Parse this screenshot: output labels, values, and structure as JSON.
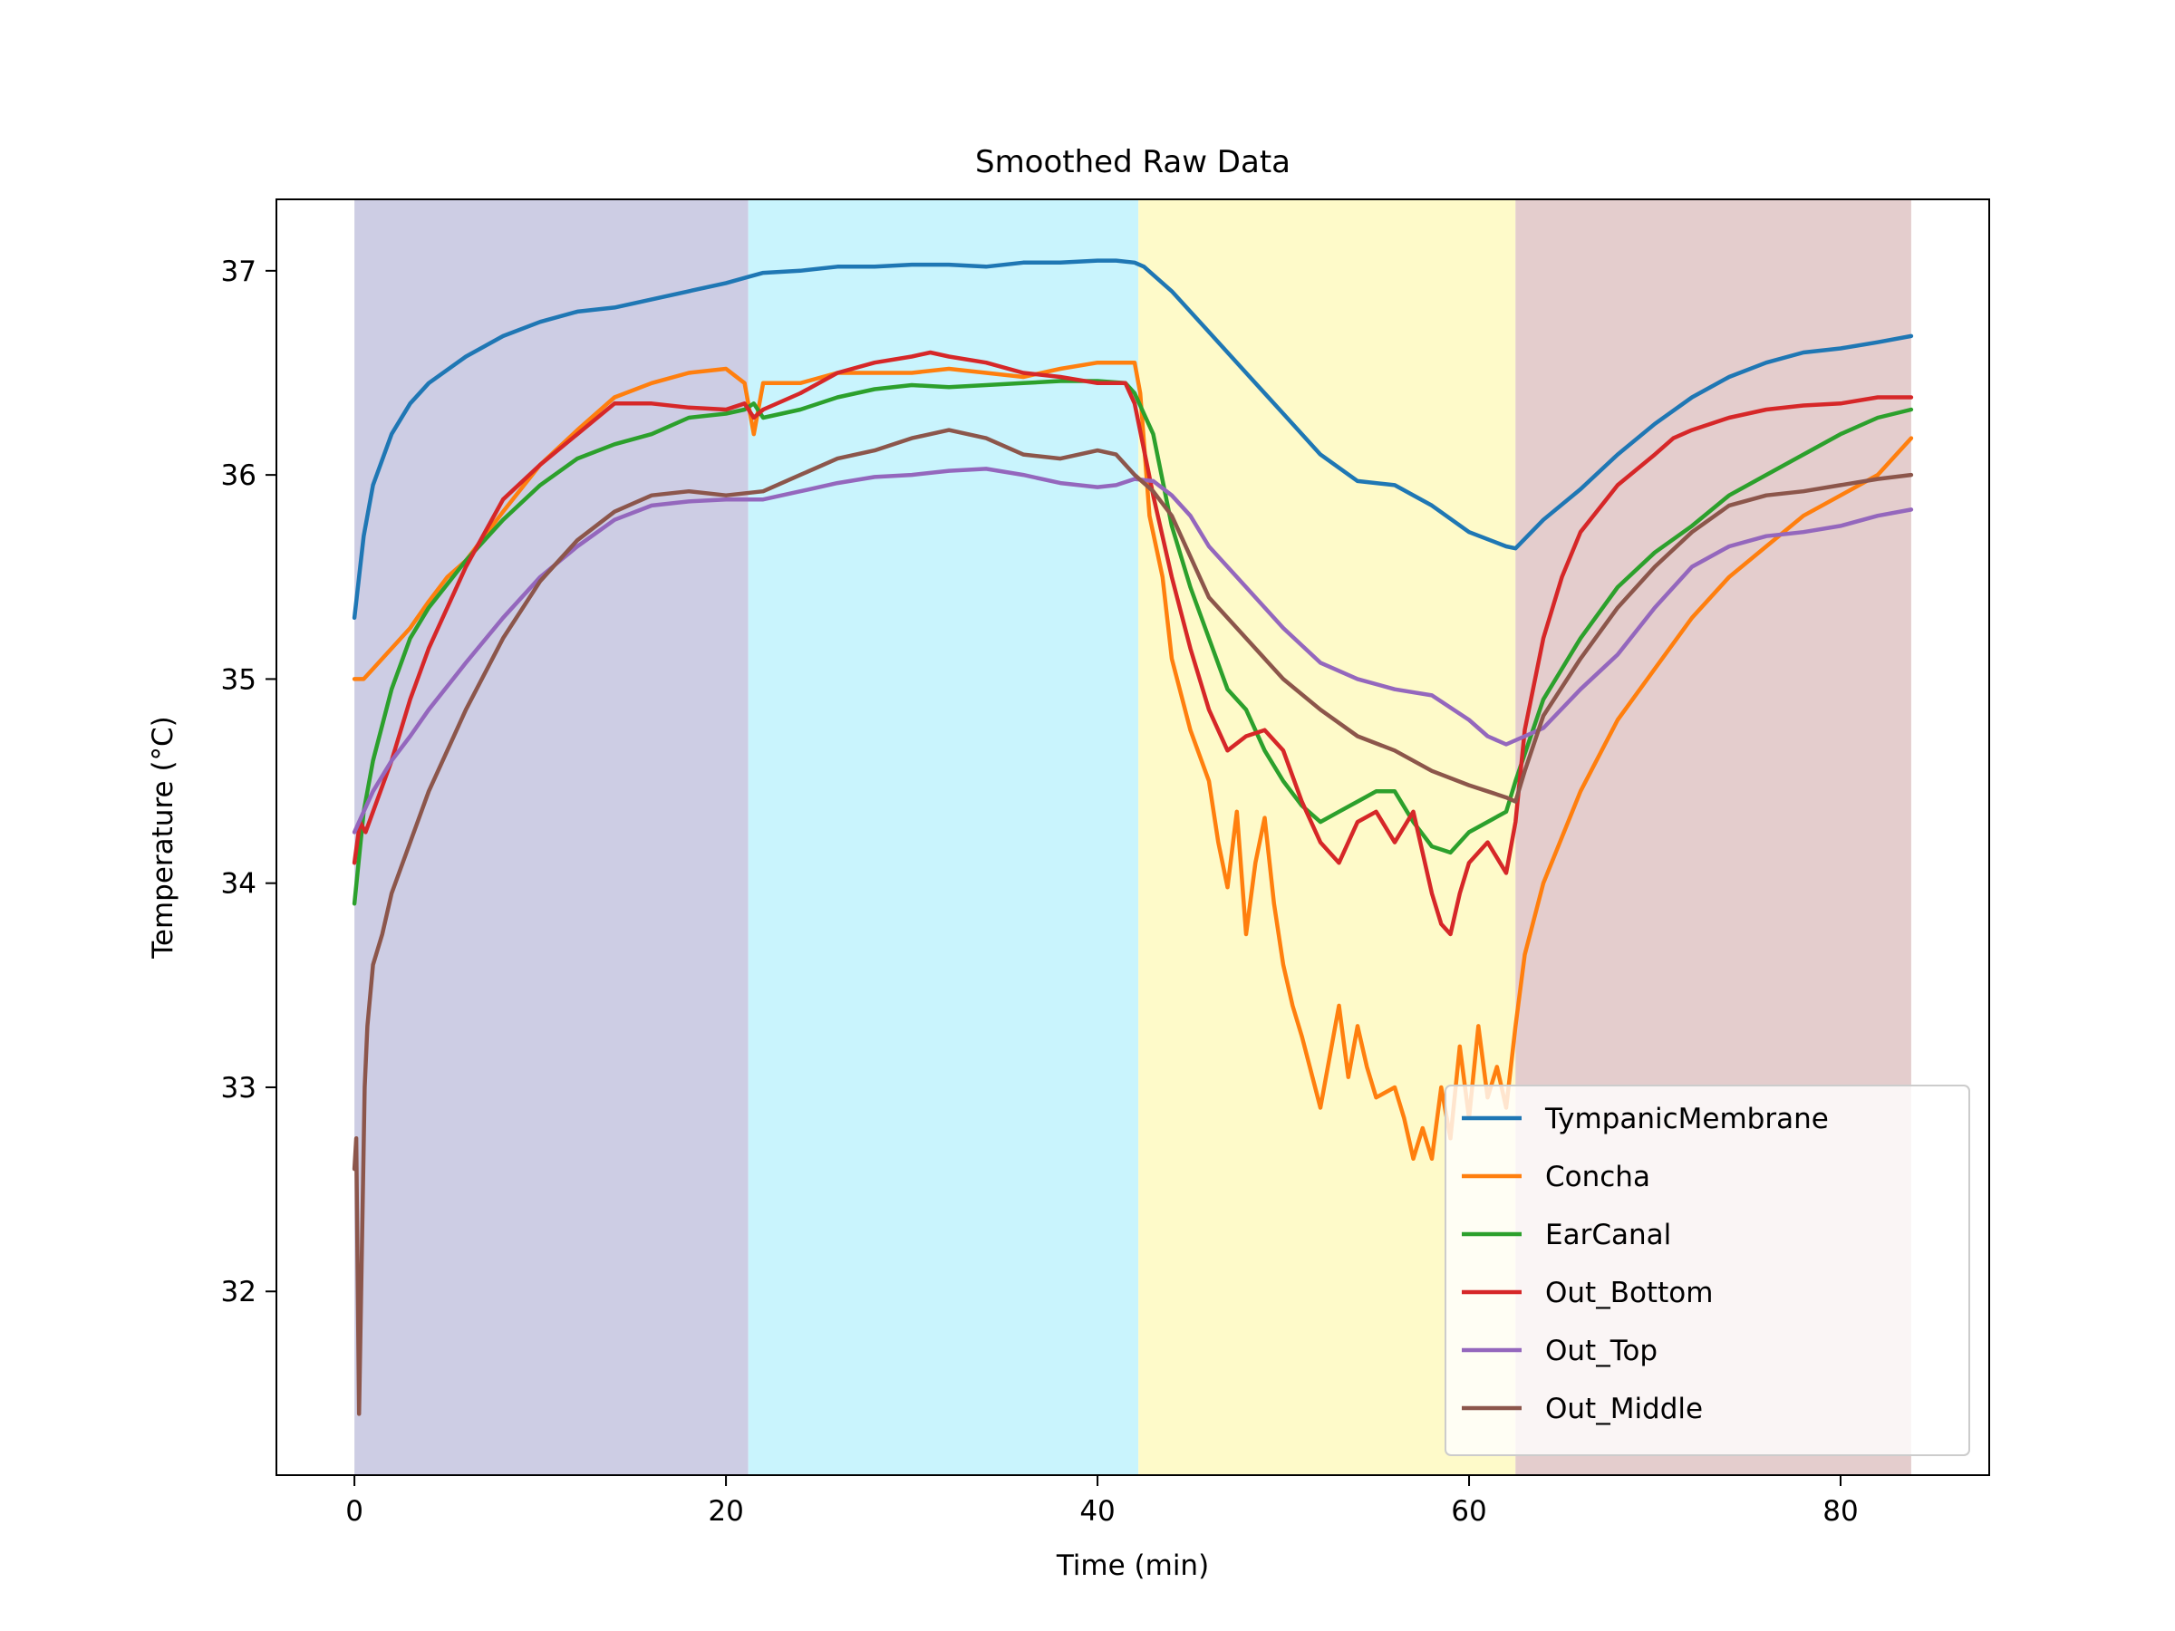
{
  "chart_data": {
    "type": "line",
    "title": "Smoothed Raw Data",
    "xlabel": "Time (min)",
    "ylabel": "Temperature (°C)",
    "xlim": [
      -4.2,
      88
    ],
    "ylim": [
      31.1,
      37.35
    ],
    "xticks": [
      0,
      20,
      40,
      60,
      80
    ],
    "yticks": [
      32,
      33,
      34,
      35,
      36,
      37
    ],
    "grid": false,
    "legend_position": "lower-right",
    "phases": [
      {
        "start": 0,
        "end": 21.2,
        "color": "#cdcde4"
      },
      {
        "start": 21.2,
        "end": 42.2,
        "color": "#c9f4fd"
      },
      {
        "start": 42.2,
        "end": 62.5,
        "color": "#fefac9"
      },
      {
        "start": 62.5,
        "end": 83.8,
        "color": "#e4cdcd"
      }
    ],
    "series": [
      {
        "name": "TympanicMembrane",
        "color": "#1f77b4",
        "x": [
          0,
          0.5,
          1,
          2,
          3,
          4,
          6,
          8,
          10,
          12,
          14,
          16,
          18,
          20,
          21.2,
          22,
          24,
          26,
          28,
          30,
          32,
          34,
          36,
          38,
          40,
          41,
          42,
          42.5,
          44,
          46,
          48,
          50,
          52,
          54,
          56,
          58,
          60,
          62,
          62.5,
          64,
          66,
          68,
          70,
          72,
          74,
          76,
          78,
          80,
          82,
          83.8
        ],
        "y": [
          35.3,
          35.7,
          35.95,
          36.2,
          36.35,
          36.45,
          36.58,
          36.68,
          36.75,
          36.8,
          36.82,
          36.86,
          36.9,
          36.94,
          36.97,
          36.99,
          37.0,
          37.02,
          37.02,
          37.03,
          37.03,
          37.02,
          37.04,
          37.04,
          37.05,
          37.05,
          37.04,
          37.02,
          36.9,
          36.7,
          36.5,
          36.3,
          36.1,
          35.97,
          35.95,
          35.85,
          35.72,
          35.65,
          35.64,
          35.78,
          35.93,
          36.1,
          36.25,
          36.38,
          36.48,
          36.55,
          36.6,
          36.62,
          36.65,
          36.68
        ]
      },
      {
        "name": "Concha",
        "color": "#ff7f0e",
        "x": [
          0,
          0.5,
          1,
          2,
          3,
          4,
          5,
          6,
          8,
          10,
          12,
          14,
          16,
          18,
          20,
          21,
          21.5,
          22,
          24,
          26,
          28,
          30,
          32,
          34,
          36,
          38,
          40,
          41.5,
          42,
          42.3,
          42.8,
          43.5,
          44,
          45,
          46,
          46.5,
          47,
          47.5,
          48,
          48.5,
          49,
          49.5,
          50,
          50.5,
          51,
          52,
          53,
          53.5,
          54,
          54.5,
          55,
          56,
          56.5,
          57,
          57.5,
          58,
          58.5,
          59,
          59.5,
          60,
          60.5,
          61,
          61.5,
          62,
          62.5,
          63,
          64,
          66,
          68,
          70,
          72,
          74,
          76,
          78,
          80,
          82,
          83.8
        ],
        "y": [
          35.0,
          35.0,
          35.05,
          35.15,
          35.25,
          35.38,
          35.5,
          35.58,
          35.82,
          36.05,
          36.22,
          36.38,
          36.45,
          36.5,
          36.52,
          36.45,
          36.2,
          36.45,
          36.45,
          36.5,
          36.5,
          36.5,
          36.52,
          36.5,
          36.48,
          36.52,
          36.55,
          36.55,
          36.55,
          36.4,
          35.8,
          35.5,
          35.1,
          34.75,
          34.5,
          34.2,
          33.98,
          34.35,
          33.75,
          34.1,
          34.32,
          33.9,
          33.6,
          33.4,
          33.25,
          32.9,
          33.4,
          33.05,
          33.3,
          33.1,
          32.95,
          33.0,
          32.85,
          32.65,
          32.8,
          32.65,
          33.0,
          32.75,
          33.2,
          32.85,
          33.3,
          32.95,
          33.1,
          32.9,
          33.3,
          33.65,
          34.0,
          34.45,
          34.8,
          35.05,
          35.3,
          35.5,
          35.65,
          35.8,
          35.9,
          36.0,
          36.18
        ]
      },
      {
        "name": "EarCanal",
        "color": "#2ca02c",
        "x": [
          0,
          0.5,
          1,
          2,
          3,
          4,
          6,
          8,
          10,
          12,
          14,
          16,
          18,
          20,
          21,
          21.5,
          22,
          24,
          26,
          28,
          30,
          32,
          34,
          36,
          38,
          40,
          41.5,
          42,
          43,
          44,
          45,
          46,
          47,
          48,
          49,
          50,
          51,
          52,
          53,
          54,
          55,
          56,
          57,
          58,
          59,
          60,
          61,
          62,
          62.5,
          64,
          66,
          68,
          70,
          72,
          74,
          76,
          78,
          80,
          82,
          83.8
        ],
        "y": [
          33.9,
          34.35,
          34.6,
          34.95,
          35.2,
          35.35,
          35.58,
          35.78,
          35.95,
          36.08,
          36.15,
          36.2,
          36.28,
          36.3,
          36.32,
          36.35,
          36.28,
          36.32,
          36.38,
          36.42,
          36.44,
          36.43,
          36.44,
          36.45,
          36.46,
          36.46,
          36.45,
          36.4,
          36.2,
          35.75,
          35.45,
          35.2,
          34.95,
          34.85,
          34.65,
          34.5,
          34.38,
          34.3,
          34.35,
          34.4,
          34.45,
          34.45,
          34.3,
          34.18,
          34.15,
          34.25,
          34.3,
          34.35,
          34.5,
          34.9,
          35.2,
          35.45,
          35.62,
          35.75,
          35.9,
          36.0,
          36.1,
          36.2,
          36.28,
          36.32
        ]
      },
      {
        "name": "Out_Bottom",
        "color": "#d62728",
        "x": [
          0,
          0.3,
          0.6,
          1,
          2,
          3,
          4,
          6,
          8,
          10,
          12,
          14,
          16,
          18,
          20,
          21,
          21.5,
          22,
          24,
          26,
          28,
          30,
          31,
          32,
          34,
          36,
          38,
          40,
          41.5,
          42,
          43,
          44,
          45,
          46,
          47,
          48,
          49,
          50,
          51,
          52,
          53,
          54,
          55,
          56,
          57,
          58,
          58.5,
          59,
          59.5,
          60,
          61,
          62,
          62.5,
          63,
          64,
          65,
          66,
          68,
          70,
          71,
          72,
          74,
          76,
          78,
          80,
          82,
          83.8
        ],
        "y": [
          34.1,
          34.3,
          34.25,
          34.35,
          34.6,
          34.9,
          35.15,
          35.55,
          35.88,
          36.05,
          36.2,
          36.35,
          36.35,
          36.33,
          36.32,
          36.35,
          36.28,
          36.32,
          36.4,
          36.5,
          36.55,
          36.58,
          36.6,
          36.58,
          36.55,
          36.5,
          36.48,
          36.45,
          36.45,
          36.35,
          35.9,
          35.5,
          35.15,
          34.85,
          34.65,
          34.72,
          34.75,
          34.65,
          34.4,
          34.2,
          34.1,
          34.3,
          34.35,
          34.2,
          34.35,
          33.95,
          33.8,
          33.75,
          33.95,
          34.1,
          34.2,
          34.05,
          34.3,
          34.75,
          35.2,
          35.5,
          35.72,
          35.95,
          36.1,
          36.18,
          36.22,
          36.28,
          36.32,
          36.34,
          36.35,
          36.38,
          36.38
        ]
      },
      {
        "name": "Out_Top",
        "color": "#9467bd",
        "x": [
          0,
          0.5,
          1,
          2,
          3,
          4,
          6,
          8,
          10,
          12,
          14,
          16,
          18,
          20,
          22,
          24,
          26,
          28,
          30,
          32,
          34,
          36,
          38,
          40,
          41,
          42,
          43,
          44,
          45,
          46,
          48,
          50,
          52,
          54,
          56,
          58,
          60,
          61,
          62,
          62.5,
          63,
          64,
          66,
          68,
          70,
          72,
          74,
          76,
          78,
          80,
          82,
          83.8
        ],
        "y": [
          34.25,
          34.35,
          34.45,
          34.6,
          34.72,
          34.85,
          35.08,
          35.3,
          35.5,
          35.65,
          35.78,
          35.85,
          35.87,
          35.88,
          35.88,
          35.92,
          35.96,
          35.99,
          36.0,
          36.02,
          36.03,
          36.0,
          35.96,
          35.94,
          35.95,
          35.98,
          35.97,
          35.9,
          35.8,
          35.65,
          35.45,
          35.25,
          35.08,
          35.0,
          34.95,
          34.92,
          34.8,
          34.72,
          34.68,
          34.7,
          34.72,
          34.76,
          34.95,
          35.12,
          35.35,
          35.55,
          35.65,
          35.7,
          35.72,
          35.75,
          35.8,
          35.83
        ]
      },
      {
        "name": "Out_Middle",
        "color": "#8c564b",
        "x": [
          0,
          0.1,
          0.25,
          0.4,
          0.55,
          0.7,
          0.85,
          1,
          1.5,
          2,
          3,
          4,
          6,
          8,
          10,
          12,
          14,
          16,
          18,
          20,
          22,
          24,
          26,
          28,
          30,
          32,
          34,
          36,
          38,
          40,
          41,
          42,
          43,
          44,
          45,
          46,
          48,
          50,
          52,
          54,
          56,
          58,
          60,
          61,
          62,
          62.5,
          63,
          64,
          66,
          68,
          70,
          72,
          74,
          76,
          78,
          80,
          82,
          83.8
        ],
        "y": [
          32.6,
          32.75,
          31.4,
          32.2,
          33.0,
          33.3,
          33.45,
          33.6,
          33.75,
          33.95,
          34.2,
          34.45,
          34.85,
          35.2,
          35.48,
          35.68,
          35.82,
          35.9,
          35.92,
          35.9,
          35.92,
          36.0,
          36.08,
          36.12,
          36.18,
          36.22,
          36.18,
          36.1,
          36.08,
          36.12,
          36.1,
          36.0,
          35.92,
          35.8,
          35.6,
          35.4,
          35.2,
          35.0,
          34.85,
          34.72,
          34.65,
          34.55,
          34.48,
          34.45,
          34.42,
          34.4,
          34.55,
          34.82,
          35.1,
          35.35,
          35.55,
          35.72,
          35.85,
          35.9,
          35.92,
          35.95,
          35.98,
          36.0
        ]
      }
    ]
  }
}
